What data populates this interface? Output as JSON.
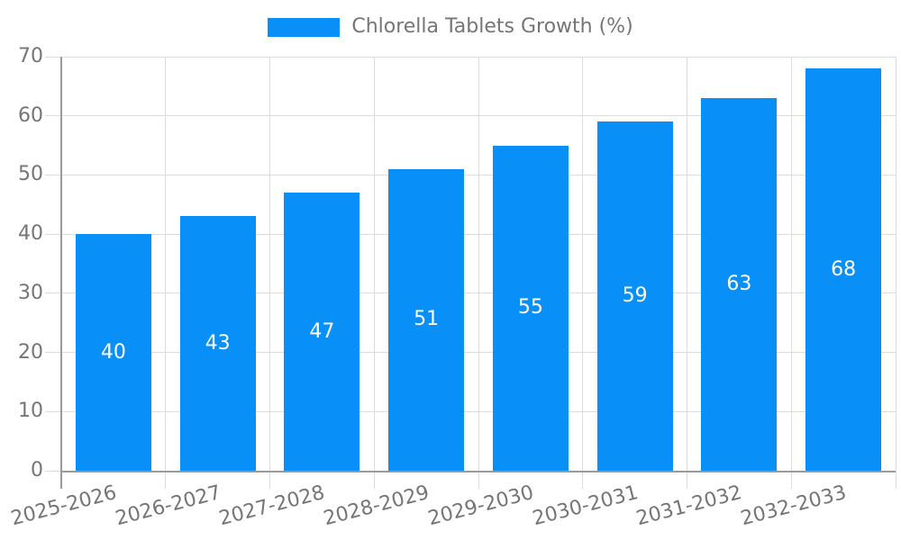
{
  "chart_data": {
    "type": "bar",
    "title": "Chlorella Tablets Growth (%)",
    "categories": [
      "2025-2026",
      "2026-2027",
      "2027-2028",
      "2028-2029",
      "2029-2030",
      "2030-2031",
      "2031-2032",
      "2032-2033"
    ],
    "values": [
      40,
      43,
      47,
      51,
      55,
      59,
      63,
      68
    ],
    "xlabel": "",
    "ylabel": "",
    "ylim": [
      0,
      70
    ],
    "yticks": [
      0,
      10,
      20,
      30,
      40,
      50,
      60,
      70
    ],
    "grid": true,
    "legend_position": "top-center",
    "value_labels": "centered-inside-bars",
    "bar_color": "#0890f8",
    "value_label_color": "#ffffff",
    "axis_label_color": "#757575",
    "axis_line_color": "#9a9a9a",
    "grid_color": "#dcdcdc"
  },
  "legend": {
    "swatch_color": "#0890f8",
    "label": "Chlorella Tablets Growth (%)"
  }
}
